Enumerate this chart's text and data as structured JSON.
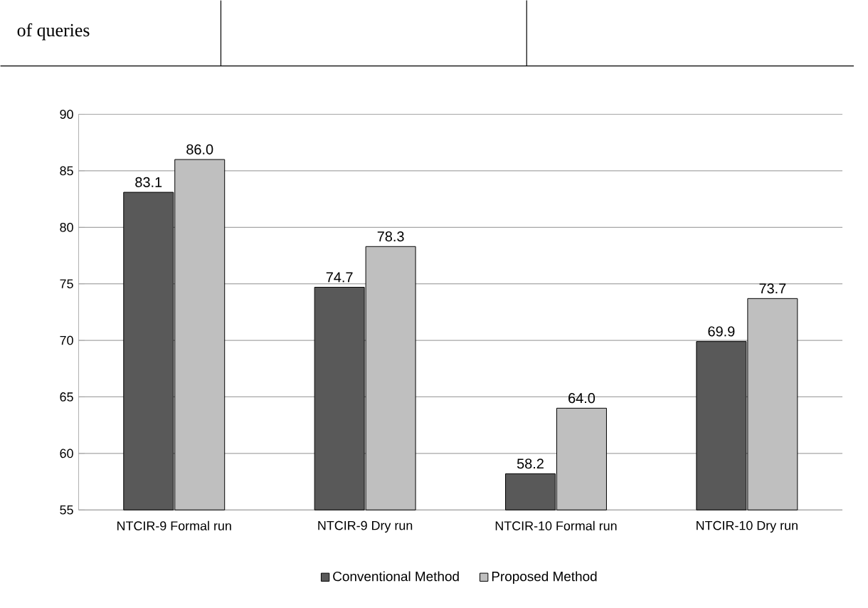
{
  "chart_data": {
    "type": "bar",
    "categories": [
      "NTCIR-9 Formal run",
      "NTCIR-9 Dry run",
      "NTCIR-10 Formal run",
      "NTCIR-10 Dry run"
    ],
    "series": [
      {
        "name": "Conventional Method",
        "color": "#595959",
        "values": [
          83.1,
          74.7,
          58.2,
          69.9
        ],
        "value_labels": [
          "83.1",
          "74.7",
          "58.2",
          "69.9"
        ]
      },
      {
        "name": "Proposed Method",
        "color": "#bfbfbf",
        "values": [
          86.0,
          78.3,
          64.0,
          73.7
        ],
        "value_labels": [
          "86.0",
          "78.3",
          "64.0",
          "73.7"
        ]
      }
    ],
    "ylim": [
      55,
      90
    ],
    "yticks": [
      55,
      60,
      65,
      70,
      75,
      80,
      85,
      90
    ],
    "grid": "y",
    "legend": "bottom",
    "annotations": [
      "of queries"
    ]
  }
}
